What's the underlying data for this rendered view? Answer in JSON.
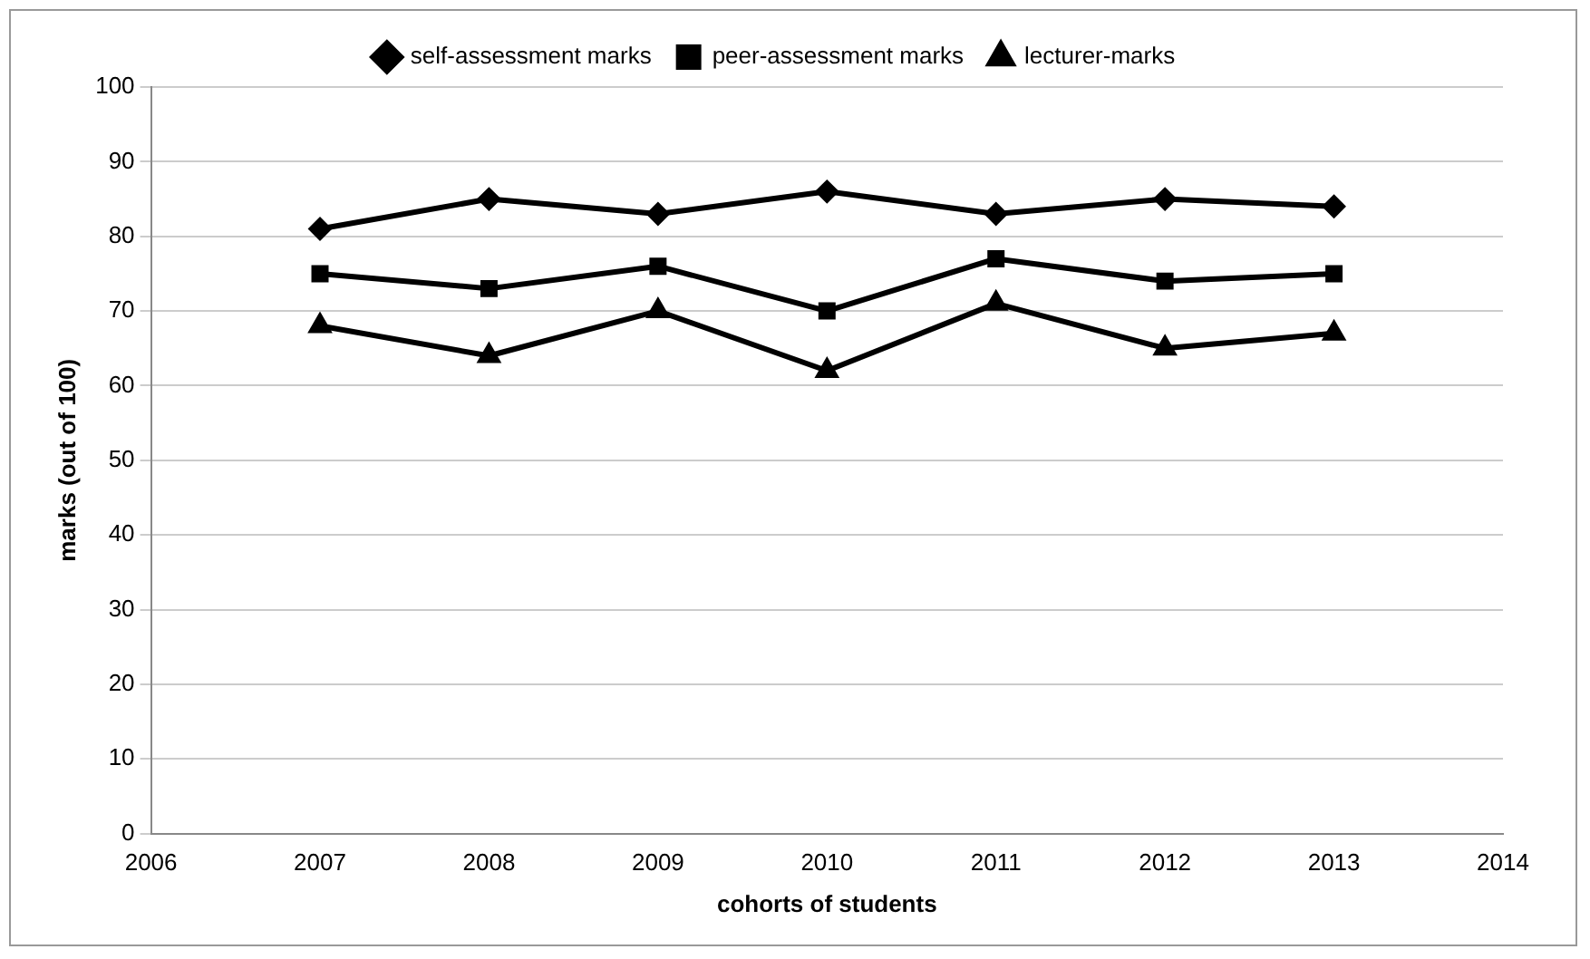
{
  "chart_data": {
    "type": "line",
    "xlabel": "cohorts of students",
    "ylabel": "marks (out of 100)",
    "x": [
      2007,
      2008,
      2009,
      2010,
      2011,
      2012,
      2013
    ],
    "xlim": [
      2006,
      2014
    ],
    "xticks": [
      2006,
      2007,
      2008,
      2009,
      2010,
      2011,
      2012,
      2013,
      2014
    ],
    "ylim": [
      0,
      100
    ],
    "yticks": [
      0,
      10,
      20,
      30,
      40,
      50,
      60,
      70,
      80,
      90,
      100
    ],
    "grid": "y",
    "legend": "top",
    "line_style": "solid",
    "series": [
      {
        "name": "self-assessment marks",
        "color": "#000000",
        "marker": "diamond",
        "values": [
          81,
          85,
          83,
          86,
          83,
          85,
          84
        ]
      },
      {
        "name": "peer-assessment marks",
        "color": "#000000",
        "marker": "square",
        "values": [
          75,
          73,
          76,
          70,
          77,
          74,
          75
        ]
      },
      {
        "name": "lecturer-marks",
        "color": "#000000",
        "marker": "triangle",
        "values": [
          68,
          64,
          70,
          62,
          71,
          65,
          67
        ]
      }
    ]
  }
}
